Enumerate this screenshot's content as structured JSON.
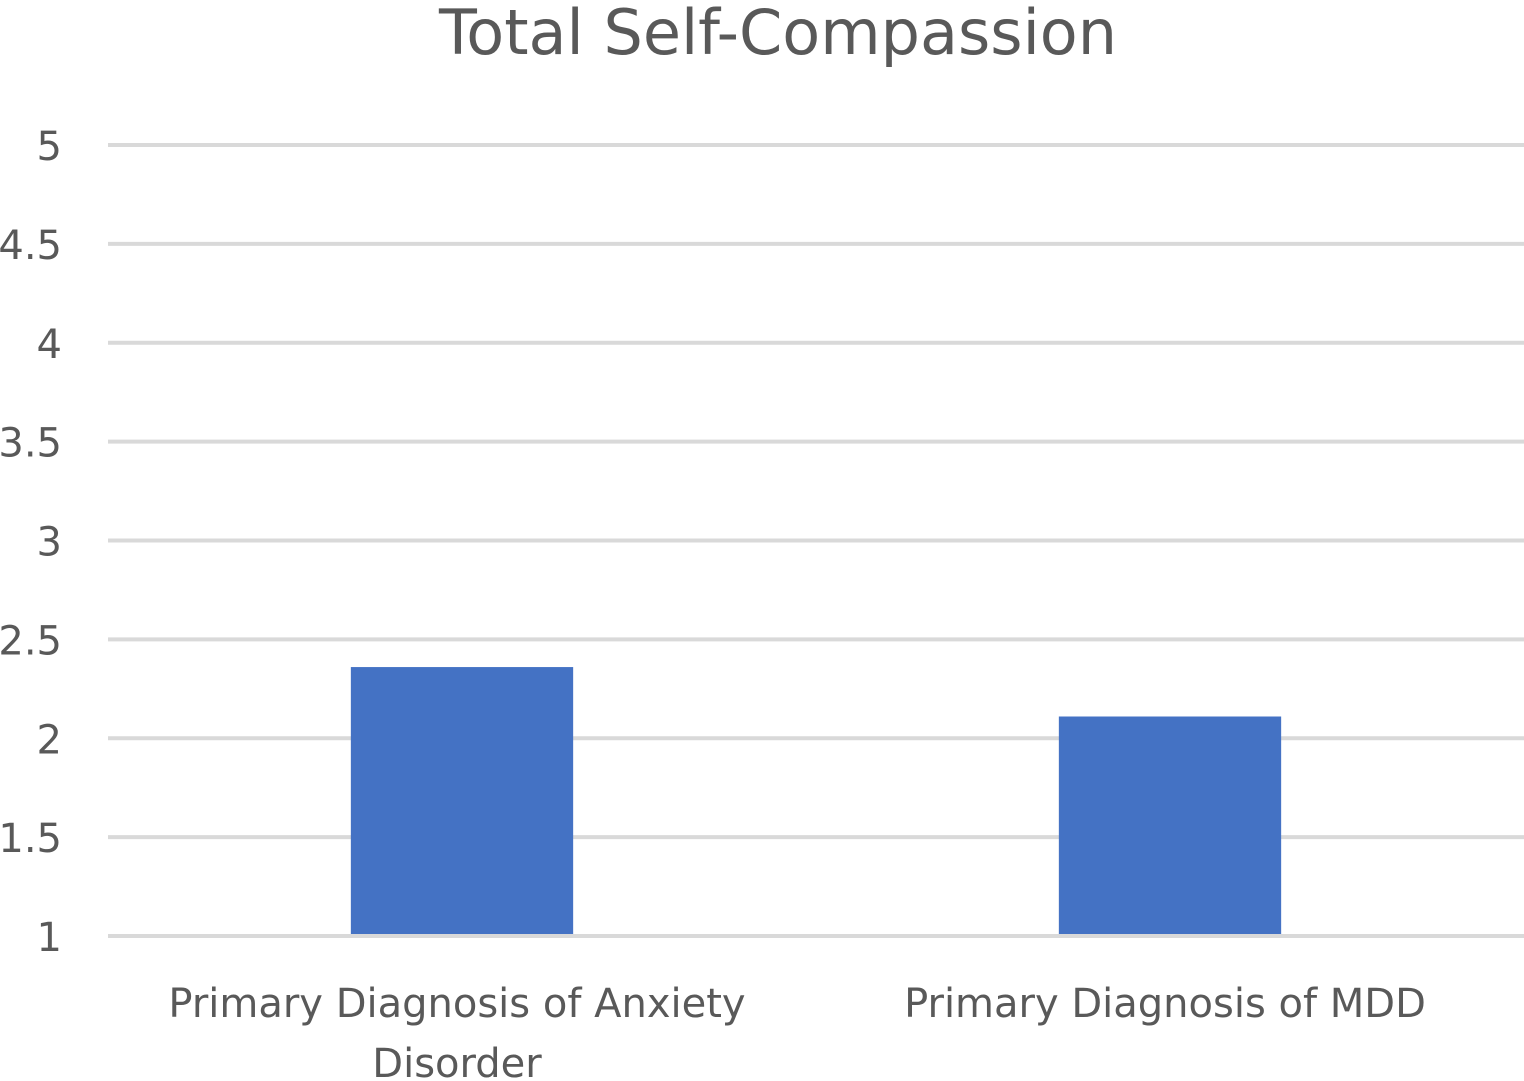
{
  "chart_data": {
    "type": "bar",
    "title": "Total Self-Compassion",
    "categories": [
      [
        "Primary Diagnosis of Anxiety",
        "Disorder"
      ],
      [
        "Primary Diagnosis of MDD"
      ]
    ],
    "values": [
      2.36,
      2.11
    ],
    "xlabel": "",
    "ylabel": "",
    "ylim": [
      1,
      5
    ],
    "yticks": [
      "1",
      "1.5",
      "2",
      "2.5",
      "3",
      "3.5",
      "4",
      "4.5",
      "5"
    ],
    "grid": true,
    "legend": "none",
    "colors": {
      "bar": "#4472C4",
      "grid": "#D9D9D9",
      "text": "#595959"
    }
  }
}
